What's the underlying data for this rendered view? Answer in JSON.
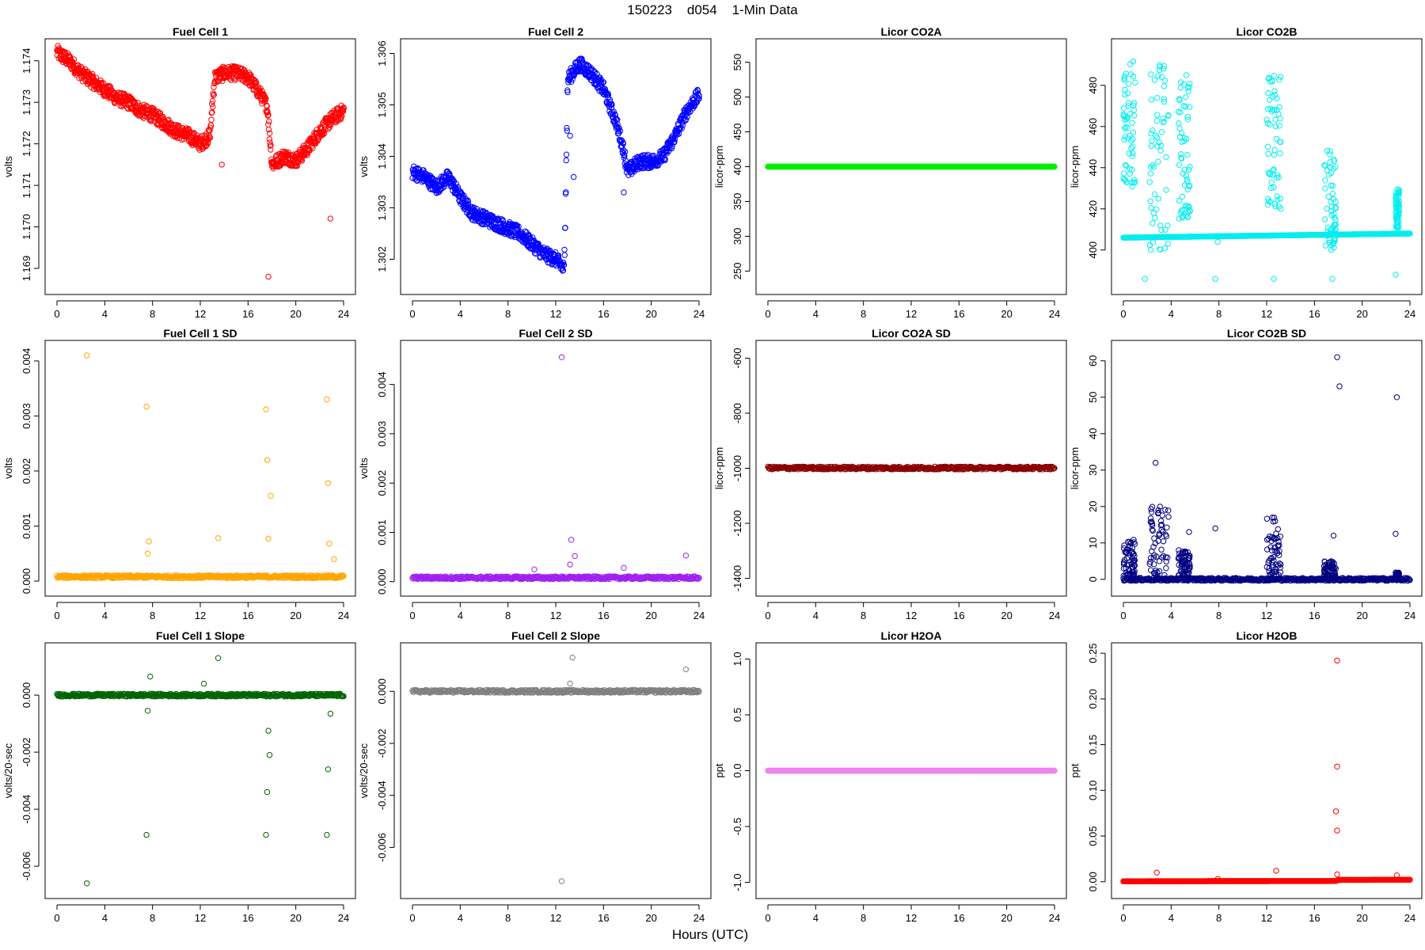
{
  "page_title": "150223    d054    1-Min Data",
  "xlabel": "Hours (UTC)",
  "chart_data": [
    {
      "type": "scatter",
      "title": "Fuel Cell 1",
      "ylabel": "volts",
      "color": "#ff0000",
      "xlim": [
        0,
        24
      ],
      "ylim": [
        1.1686,
        1.1743
      ],
      "xticks": [
        0,
        4,
        8,
        12,
        16,
        20,
        24
      ],
      "yticks": [
        1.169,
        1.17,
        1.171,
        1.172,
        1.173,
        1.174
      ],
      "ytick_labels": [
        "1.169",
        "1.170",
        "1.171",
        "1.172",
        "1.173",
        "1.174"
      ],
      "series": [
        {
          "x": [
            0,
            1,
            2,
            3,
            4,
            5,
            6,
            7,
            8,
            9,
            10,
            11,
            12,
            12.8,
            13.2,
            14,
            15,
            16,
            17,
            17.6,
            18,
            19,
            20,
            21,
            22,
            23,
            24
          ],
          "y": [
            1.1742,
            1.174,
            1.1737,
            1.1735,
            1.1733,
            1.1731,
            1.173,
            1.1728,
            1.1727,
            1.1725,
            1.1723,
            1.1722,
            1.172,
            1.1722,
            1.1736,
            1.1737,
            1.1737,
            1.1736,
            1.1732,
            1.1729,
            1.1715,
            1.1717,
            1.1716,
            1.1719,
            1.1723,
            1.1726,
            1.1728
          ]
        }
      ],
      "outliers": [
        {
          "x": 17.7,
          "y": 1.1688
        },
        {
          "x": 22.9,
          "y": 1.1702
        },
        {
          "x": 13.8,
          "y": 1.1715
        }
      ]
    },
    {
      "type": "scatter",
      "title": "Fuel Cell 2",
      "ylabel": "volts",
      "color": "#0000ff",
      "xlim": [
        0,
        24
      ],
      "ylim": [
        1.3015,
        1.3061
      ],
      "xticks": [
        0,
        4,
        8,
        12,
        16,
        20,
        24
      ],
      "yticks": [
        1.302,
        1.303,
        1.304,
        1.305,
        1.306
      ],
      "ytick_labels": [
        "1.302",
        "1.303",
        "1.304",
        "1.305",
        "1.306"
      ],
      "series": [
        {
          "x": [
            0,
            1,
            2,
            3,
            4,
            5,
            6,
            7,
            8,
            9,
            10,
            11,
            12,
            12.7,
            13,
            14,
            15,
            16,
            17,
            17.7,
            18,
            19,
            20,
            21,
            22,
            23,
            24
          ],
          "y": [
            1.3037,
            1.3036,
            1.3034,
            1.3036,
            1.3032,
            1.3029,
            1.3028,
            1.3027,
            1.3026,
            1.3025,
            1.3023,
            1.3021,
            1.302,
            1.3018,
            1.3055,
            1.3058,
            1.3056,
            1.3053,
            1.3047,
            1.3041,
            1.3037,
            1.3039,
            1.3039,
            1.304,
            1.3044,
            1.3049,
            1.3052
          ]
        }
      ],
      "outliers": [
        {
          "x": 13.2,
          "y": 1.3044
        },
        {
          "x": 17.7,
          "y": 1.3033
        },
        {
          "x": 13.5,
          "y": 1.3036
        }
      ]
    },
    {
      "type": "scatter",
      "title": "Licor CO2A",
      "ylabel": "licor-ppm",
      "color": "#00ee00",
      "xlim": [
        0,
        24
      ],
      "ylim": [
        230,
        570
      ],
      "xticks": [
        0,
        4,
        8,
        12,
        16,
        20,
        24
      ],
      "yticks": [
        250,
        300,
        350,
        400,
        450,
        500,
        550
      ],
      "ytick_labels": [
        "250",
        "300",
        "350",
        "400",
        "450",
        "500",
        "550"
      ],
      "series": [
        {
          "x": [
            0,
            24
          ],
          "y": [
            400,
            400
          ]
        }
      ]
    },
    {
      "type": "scatter",
      "title": "Licor CO2B",
      "ylabel": "licor-ppm",
      "color": "#00eeee",
      "xlim": [
        0,
        24
      ],
      "ylim": [
        383,
        498
      ],
      "xticks": [
        0,
        4,
        8,
        12,
        16,
        20,
        24
      ],
      "yticks": [
        400,
        420,
        440,
        460,
        480
      ],
      "ytick_labels": [
        "400",
        "420",
        "440",
        "460",
        "480"
      ],
      "series": [
        {
          "x": [
            0,
            24
          ],
          "y": [
            406,
            408
          ]
        }
      ],
      "bursts": [
        [
          0.0,
          1.0,
          430,
          495
        ],
        [
          2.2,
          3.8,
          400,
          490
        ],
        [
          4.6,
          5.6,
          415,
          485
        ],
        [
          12.0,
          13.2,
          420,
          485
        ],
        [
          16.8,
          17.8,
          400,
          450
        ],
        [
          22.8,
          23.1,
          410,
          430
        ]
      ],
      "outliers": [
        {
          "x": 1.8,
          "y": 386
        },
        {
          "x": 7.7,
          "y": 386
        },
        {
          "x": 12.6,
          "y": 386
        },
        {
          "x": 17.5,
          "y": 386
        },
        {
          "x": 22.8,
          "y": 388
        },
        {
          "x": 7.9,
          "y": 404
        }
      ]
    },
    {
      "type": "scatter",
      "title": "Fuel Cell 1 SD",
      "ylabel": "volts",
      "color": "#ffa500",
      "xlim": [
        0,
        24
      ],
      "ylim": [
        -0.0001,
        0.0042
      ],
      "xticks": [
        0,
        4,
        8,
        12,
        16,
        20,
        24
      ],
      "yticks": [
        0,
        0.001,
        0.002,
        0.003,
        0.004
      ],
      "ytick_labels": [
        "0.000",
        "0.001",
        "0.002",
        "0.003",
        "0.004"
      ],
      "series": [
        {
          "x": [
            0,
            24
          ],
          "y": [
            8e-05,
            8e-05
          ]
        }
      ],
      "outliers": [
        {
          "x": 2.5,
          "y": 0.0041
        },
        {
          "x": 7.5,
          "y": 0.00317
        },
        {
          "x": 7.7,
          "y": 0.00072
        },
        {
          "x": 7.6,
          "y": 0.0005
        },
        {
          "x": 13.5,
          "y": 0.00078
        },
        {
          "x": 17.5,
          "y": 0.00312
        },
        {
          "x": 17.6,
          "y": 0.0022
        },
        {
          "x": 17.9,
          "y": 0.00155
        },
        {
          "x": 17.7,
          "y": 0.00077
        },
        {
          "x": 22.6,
          "y": 0.0033
        },
        {
          "x": 22.7,
          "y": 0.00178
        },
        {
          "x": 22.8,
          "y": 0.00068
        },
        {
          "x": 23.2,
          "y": 0.0004
        }
      ]
    },
    {
      "type": "scatter",
      "title": "Fuel Cell 2 SD",
      "ylabel": "volts",
      "color": "#a020f0",
      "xlim": [
        0,
        24
      ],
      "ylim": [
        -0.0001,
        0.0047
      ],
      "xticks": [
        0,
        4,
        8,
        12,
        16,
        20,
        24
      ],
      "yticks": [
        0,
        0.001,
        0.002,
        0.003,
        0.004
      ],
      "ytick_labels": [
        "0.000",
        "0.001",
        "0.002",
        "0.003",
        "0.004"
      ],
      "series": [
        {
          "x": [
            0,
            24
          ],
          "y": [
            8e-05,
            8e-05
          ]
        }
      ],
      "outliers": [
        {
          "x": 12.5,
          "y": 0.00455
        },
        {
          "x": 13.3,
          "y": 0.00085
        },
        {
          "x": 13.6,
          "y": 0.00052
        },
        {
          "x": 13.2,
          "y": 0.00035
        },
        {
          "x": 22.9,
          "y": 0.00053
        },
        {
          "x": 17.7,
          "y": 0.00028
        },
        {
          "x": 10.2,
          "y": 0.00025
        }
      ]
    },
    {
      "type": "scatter",
      "title": "Licor CO2A SD",
      "ylabel": "licor-ppm",
      "color": "#8b0000",
      "xlim": [
        0,
        24
      ],
      "ylim": [
        -1430,
        -570
      ],
      "xticks": [
        0,
        4,
        8,
        12,
        16,
        20,
        24
      ],
      "yticks": [
        -1400,
        -1200,
        -1000,
        -800,
        -600
      ],
      "ytick_labels": [
        "-1400",
        "-1200",
        "-1000",
        "-800",
        "-600"
      ],
      "series": [
        {
          "x": [
            0,
            24
          ],
          "y": [
            -999,
            -999
          ]
        }
      ]
    },
    {
      "type": "scatter",
      "title": "Licor CO2B SD",
      "ylabel": "licor-ppm",
      "color": "#000080",
      "xlim": [
        0,
        24
      ],
      "ylim": [
        -2,
        63
      ],
      "xticks": [
        0,
        4,
        8,
        12,
        16,
        20,
        24
      ],
      "yticks": [
        0,
        10,
        20,
        30,
        40,
        50,
        60
      ],
      "ytick_labels": [
        "0",
        "10",
        "20",
        "30",
        "40",
        "50",
        "60"
      ],
      "series": [
        {
          "x": [
            0,
            24
          ],
          "y": [
            0,
            0
          ]
        }
      ],
      "bursts": [
        [
          0.0,
          1.0,
          1,
          11
        ],
        [
          2.2,
          3.8,
          1,
          20
        ],
        [
          4.6,
          5.6,
          1,
          8
        ],
        [
          12.0,
          13.2,
          1,
          17
        ],
        [
          16.8,
          17.8,
          0,
          5
        ],
        [
          22.8,
          23.1,
          0,
          2
        ]
      ],
      "outliers": [
        {
          "x": 2.7,
          "y": 32
        },
        {
          "x": 17.9,
          "y": 61
        },
        {
          "x": 18.1,
          "y": 53
        },
        {
          "x": 22.9,
          "y": 50
        },
        {
          "x": 22.8,
          "y": 12.5
        },
        {
          "x": 17.6,
          "y": 12
        },
        {
          "x": 7.7,
          "y": 14
        },
        {
          "x": 5.5,
          "y": 13
        }
      ]
    },
    {
      "type": "scatter",
      "title": "Fuel Cell 1 Slope",
      "ylabel": "volts/20-sec",
      "color": "#006400",
      "xlim": [
        0,
        24
      ],
      "ylim": [
        -0.0068,
        0.0015
      ],
      "xticks": [
        0,
        4,
        8,
        12,
        16,
        20,
        24
      ],
      "yticks": [
        -0.006,
        -0.004,
        -0.002,
        0
      ],
      "ytick_labels": [
        "-0.006",
        "-0.004",
        "-0.002",
        "0.000"
      ],
      "series": [
        {
          "x": [
            0,
            24
          ],
          "y": [
            0,
            0
          ]
        }
      ],
      "outliers": [
        {
          "x": 2.5,
          "y": -0.0066
        },
        {
          "x": 7.5,
          "y": -0.0049
        },
        {
          "x": 7.6,
          "y": -0.00055
        },
        {
          "x": 7.8,
          "y": 0.00065
        },
        {
          "x": 12.3,
          "y": 0.0004
        },
        {
          "x": 13.5,
          "y": 0.0013
        },
        {
          "x": 17.5,
          "y": -0.0049
        },
        {
          "x": 17.6,
          "y": -0.0034
        },
        {
          "x": 17.8,
          "y": -0.0021
        },
        {
          "x": 17.7,
          "y": -0.00125
        },
        {
          "x": 22.6,
          "y": -0.0049
        },
        {
          "x": 22.7,
          "y": -0.0026
        },
        {
          "x": 22.9,
          "y": -0.00065
        }
      ]
    },
    {
      "type": "scatter",
      "title": "Fuel Cell 2 Slope",
      "ylabel": "volts/20-sec",
      "color": "#808080",
      "xlim": [
        0,
        24
      ],
      "ylim": [
        -0.0076,
        0.0015
      ],
      "xticks": [
        0,
        4,
        8,
        12,
        16,
        20,
        24
      ],
      "yticks": [
        -0.006,
        -0.004,
        -0.002,
        0
      ],
      "ytick_labels": [
        "-0.006",
        "-0.004",
        "-0.002",
        "0.000"
      ],
      "series": [
        {
          "x": [
            0,
            24
          ],
          "y": [
            0,
            0
          ]
        }
      ],
      "outliers": [
        {
          "x": 12.5,
          "y": -0.0073
        },
        {
          "x": 13.4,
          "y": 0.0013
        },
        {
          "x": 22.9,
          "y": 0.00085
        },
        {
          "x": 13.2,
          "y": 0.0003
        }
      ]
    },
    {
      "type": "scatter",
      "title": "Licor H2OA",
      "ylabel": "ppt",
      "color": "#ee82ee",
      "xlim": [
        0,
        24
      ],
      "ylim": [
        -1.06,
        1.06
      ],
      "xticks": [
        0,
        4,
        8,
        12,
        16,
        20,
        24
      ],
      "yticks": [
        -1,
        -0.5,
        0,
        0.5,
        1
      ],
      "ytick_labels": [
        "-1.0",
        "-0.5",
        "0.0",
        "0.5",
        "1.0"
      ],
      "series": [
        {
          "x": [
            0,
            24
          ],
          "y": [
            0,
            0
          ]
        }
      ]
    },
    {
      "type": "scatter",
      "title": "Licor H2OB",
      "ylabel": "ppt",
      "color": "#ff0000",
      "xlim": [
        0,
        24
      ],
      "ylim": [
        -0.008,
        0.251
      ],
      "xticks": [
        0,
        4,
        8,
        12,
        16,
        20,
        24
      ],
      "yticks": [
        0,
        0.05,
        0.1,
        0.15,
        0.2,
        0.25
      ],
      "ytick_labels": [
        "0.00",
        "0.05",
        "0.10",
        "0.15",
        "0.20",
        "0.25"
      ],
      "series": [
        {
          "x": [
            0,
            17.8,
            18,
            24
          ],
          "y": [
            0.0005,
            0.0008,
            0.002,
            0.0022
          ]
        }
      ],
      "outliers": [
        {
          "x": 17.9,
          "y": 0.242
        },
        {
          "x": 17.9,
          "y": 0.126
        },
        {
          "x": 17.8,
          "y": 0.077
        },
        {
          "x": 17.9,
          "y": 0.056
        },
        {
          "x": 17.9,
          "y": 0.008
        },
        {
          "x": 2.8,
          "y": 0.01
        },
        {
          "x": 7.9,
          "y": 0.003
        },
        {
          "x": 12.8,
          "y": 0.012
        },
        {
          "x": 22.9,
          "y": 0.007
        }
      ]
    }
  ]
}
